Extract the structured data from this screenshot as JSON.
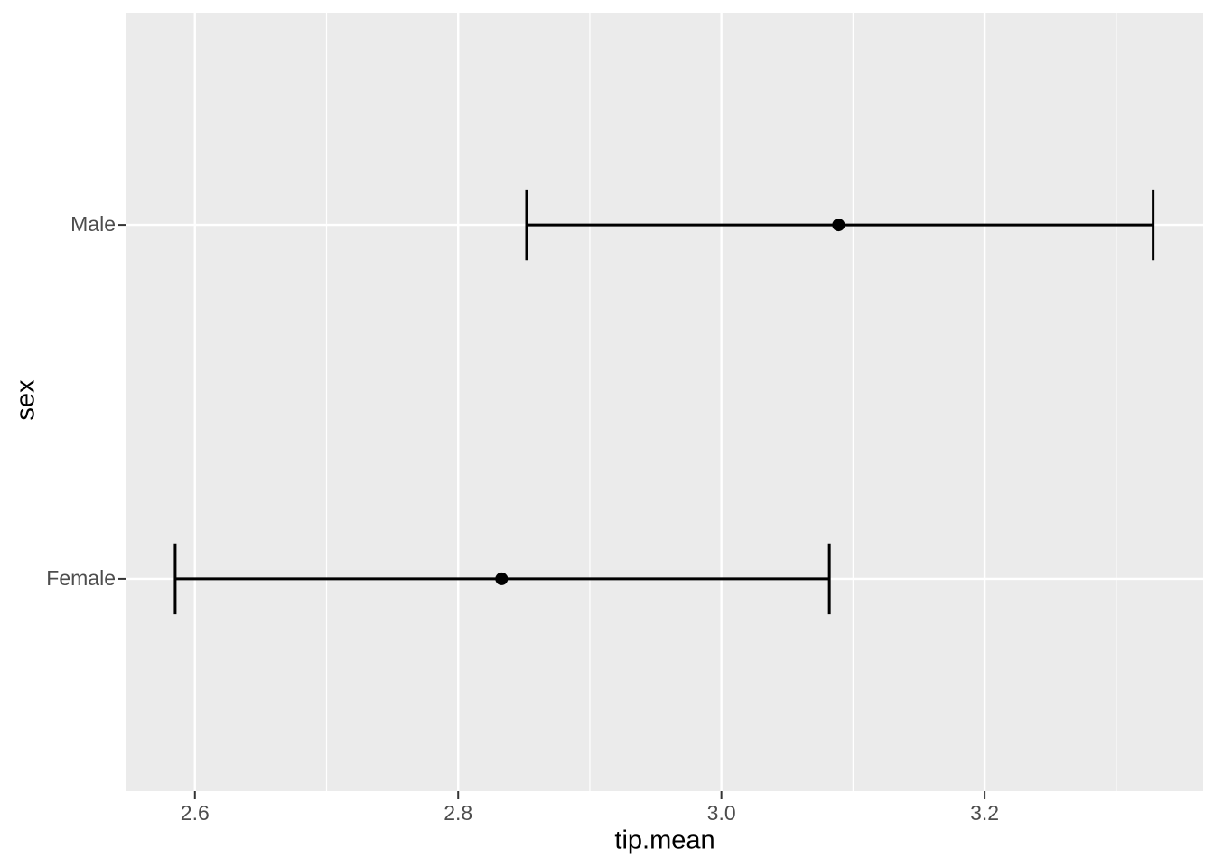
{
  "chart_data": {
    "type": "errorbar",
    "orientation": "horizontal",
    "title": "",
    "xlabel": "tip.mean",
    "ylabel": "sex",
    "categories": [
      "Female",
      "Male"
    ],
    "series": [
      {
        "category": "Male",
        "mean": 3.089,
        "ci_low": 2.852,
        "ci_high": 3.328
      },
      {
        "category": "Female",
        "mean": 2.833,
        "ci_low": 2.585,
        "ci_high": 3.082
      }
    ],
    "x_major_ticks": [
      2.6,
      2.8,
      3.0,
      3.2
    ],
    "x_tick_labels": [
      "2.6",
      "2.8",
      "3.0",
      "3.2"
    ],
    "x_minor_ticks": [
      2.7,
      2.9,
      3.1,
      3.3
    ],
    "xlim": [
      2.548,
      3.366
    ],
    "y_positions": {
      "Female": 1,
      "Male": 2
    },
    "ylim_cat": [
      0.4,
      2.6
    ],
    "cap_half_width_cat": 0.1,
    "grid": "white major and minor gridlines on grey panel",
    "legend": "none",
    "colors": {
      "panel_bg": "#EBEBEB",
      "grid": "#FFFFFF",
      "data": "#000000",
      "tick_label": "#4D4D4D",
      "axis_title": "#000000",
      "tick_mark": "#333333"
    }
  }
}
